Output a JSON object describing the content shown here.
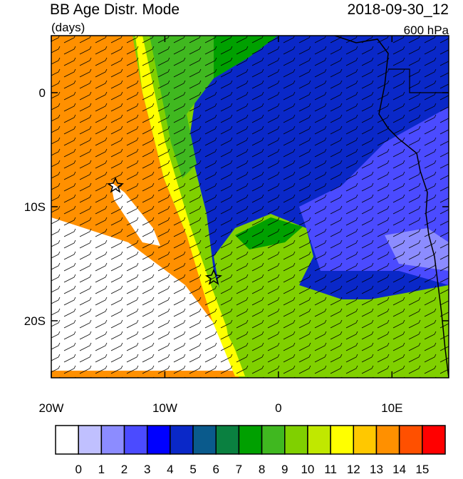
{
  "chart_data": {
    "type": "map",
    "title": "BB Age Distr. Mode",
    "subtitle": "(days)",
    "date": "2018-09-30_12",
    "level": "600 hPa",
    "xlim": [
      -20,
      15
    ],
    "ylim": [
      -25,
      5
    ],
    "xticks": [
      {
        "value": -20,
        "label": "20W"
      },
      {
        "value": -10,
        "label": "10W"
      },
      0,
      {
        "value": 10,
        "label": "10E"
      }
    ],
    "yticks": [
      0,
      {
        "value": -10,
        "label": "10S"
      },
      {
        "value": -20,
        "label": "20S"
      }
    ],
    "colorbar": {
      "levels": [
        0,
        1,
        2,
        3,
        4,
        5,
        6,
        7,
        8,
        9,
        10,
        11,
        12,
        13,
        14,
        15
      ],
      "colors": [
        "#ffffff",
        "#c0c0ff",
        "#8c8cff",
        "#4b4bff",
        "#0000ff",
        "#0a28c8",
        "#0a5a8c",
        "#0a8040",
        "#00a000",
        "#40b820",
        "#80d000",
        "#c0e800",
        "#ffff00",
        "#ffc800",
        "#ff9000",
        "#ff5000",
        "#ff0000"
      ]
    }
  }
}
